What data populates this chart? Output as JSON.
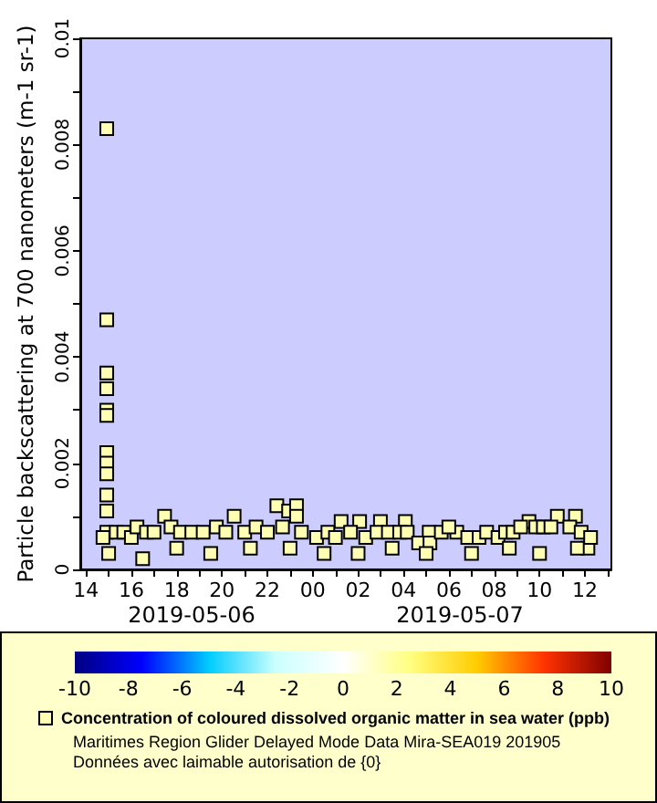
{
  "chart_data": {
    "type": "scatter",
    "ylabel": "Particle backscattering at 700 nanometers (m-1 sr-1)",
    "x": [
      "2019-05-06T14:55",
      "2019-05-06T14:55",
      "2019-05-06T14:55",
      "2019-05-06T14:55",
      "2019-05-06T14:55",
      "2019-05-06T14:55",
      "2019-05-06T14:55",
      "2019-05-06T14:55",
      "2019-05-06T14:55",
      "2019-05-06T14:55",
      "2019-05-06T14:55",
      "2019-05-06T14:55",
      "2019-05-06T17:28",
      "2019-05-06T20:32",
      "2019-05-06T22:25",
      "2019-05-06T22:56",
      "2019-05-06T23:17",
      "2019-05-06T23:17",
      "2019-05-07T01:15",
      "2019-05-07T02:04",
      "2019-05-07T02:59",
      "2019-05-07T04:05",
      "2019-05-07T05:08",
      "2019-05-07T06:21",
      "2019-05-07T09:32",
      "2019-05-07T10:47",
      "2019-05-07T11:35",
      "2019-05-07T12:08",
      "2019-05-06T14:45",
      "2019-05-06T15:20",
      "2019-05-06T15:40",
      "2019-05-06T16:00",
      "2019-05-06T16:15",
      "2019-05-06T16:40",
      "2019-05-06T17:00",
      "2019-05-06T17:45",
      "2019-05-06T18:10",
      "2019-05-06T18:40",
      "2019-05-06T19:10",
      "2019-05-06T19:45",
      "2019-05-06T20:10",
      "2019-05-06T21:00",
      "2019-05-06T21:30",
      "2019-05-06T22:00",
      "2019-05-06T22:40",
      "2019-05-06T23:30",
      "2019-05-07T00:10",
      "2019-05-07T00:40",
      "2019-05-07T01:00",
      "2019-05-07T01:40",
      "2019-05-07T02:20",
      "2019-05-07T02:50",
      "2019-05-07T03:20",
      "2019-05-07T03:50",
      "2019-05-07T04:10",
      "2019-05-07T04:40",
      "2019-05-07T05:10",
      "2019-05-07T05:40",
      "2019-05-07T06:00",
      "2019-05-07T06:50",
      "2019-05-07T07:20",
      "2019-05-07T07:40",
      "2019-05-07T08:10",
      "2019-05-07T08:30",
      "2019-05-07T08:50",
      "2019-05-07T09:10",
      "2019-05-07T09:50",
      "2019-05-07T10:10",
      "2019-05-07T10:30",
      "2019-05-07T11:20",
      "2019-05-07T11:50",
      "2019-05-07T12:15",
      "2019-05-06T15:00",
      "2019-05-06T16:30",
      "2019-05-06T18:00",
      "2019-05-06T19:30",
      "2019-05-06T21:15",
      "2019-05-06T23:00",
      "2019-05-07T00:30",
      "2019-05-07T02:00",
      "2019-05-07T03:30",
      "2019-05-07T05:00",
      "2019-05-07T07:00",
      "2019-05-07T08:40",
      "2019-05-07T10:00",
      "2019-05-07T11:40"
    ],
    "series": [
      {
        "name": "Concentration of coloured dissolved organic matter in sea water (ppb)",
        "color": "#ffffb3",
        "values": [
          0.0083,
          0.0047,
          0.0037,
          0.0034,
          0.003,
          0.0029,
          0.0022,
          0.002,
          0.0018,
          0.0014,
          0.0011,
          0.0007,
          0.001,
          0.001,
          0.0012,
          0.0011,
          0.0012,
          0.001,
          0.0009,
          0.0009,
          0.0009,
          0.0009,
          0.0007,
          0.0007,
          0.0009,
          0.001,
          0.001,
          0.0004,
          0.0006,
          0.0007,
          0.0007,
          0.0006,
          0.0008,
          0.0007,
          0.0007,
          0.0008,
          0.0007,
          0.0007,
          0.0007,
          0.0008,
          0.0007,
          0.0007,
          0.0008,
          0.0007,
          0.0008,
          0.0007,
          0.0006,
          0.0007,
          0.0006,
          0.0007,
          0.0006,
          0.0007,
          0.0007,
          0.0007,
          0.0007,
          0.0005,
          0.0005,
          0.0007,
          0.0008,
          0.0006,
          0.0006,
          0.0007,
          0.0006,
          0.0007,
          0.0007,
          0.0008,
          0.0008,
          0.0008,
          0.0008,
          0.0008,
          0.0007,
          0.0006,
          0.0003,
          0.0002,
          0.0004,
          0.0003,
          0.0004,
          0.0004,
          0.0003,
          0.0003,
          0.0004,
          0.0003,
          0.0003,
          0.0004,
          0.0003,
          0.0004
        ],
        "cvalues": [
          1.5,
          1.5,
          1.5,
          1.5,
          1.5,
          1.5,
          1.5,
          1.5,
          1.5,
          1.5,
          1.5,
          1.5,
          1.5,
          1.5,
          1.5,
          1.5,
          1.5,
          1.5,
          1.5,
          1.5,
          1.5,
          1.5,
          1.5,
          1.5,
          1.5,
          1.5,
          1.5,
          1.5,
          1.5,
          1.5,
          1.5,
          1.5,
          1.5,
          1.5,
          1.5,
          1.5,
          1.5,
          1.5,
          1.5,
          1.5,
          1.5,
          1.5,
          1.5,
          1.5,
          1.5,
          1.5,
          1.5,
          1.5,
          1.5,
          1.5,
          1.5,
          1.5,
          1.5,
          1.5,
          1.5,
          1.5,
          1.5,
          1.5,
          1.5,
          1.5,
          1.5,
          1.5,
          1.5,
          1.5,
          1.5,
          1.5,
          1.5,
          1.5,
          1.5,
          1.5,
          1.5,
          1.5,
          1.5,
          1.5,
          1.5,
          1.5,
          1.5,
          1.5,
          1.5,
          1.5,
          1.5,
          1.5,
          1.5,
          1.5,
          1.5,
          1.5
        ]
      }
    ],
    "marker": "square",
    "legend": "bottom",
    "clim": [
      -10,
      10
    ],
    "cticks": [
      -10,
      -8,
      -6,
      -4,
      -2,
      0,
      2,
      4,
      6,
      8,
      10
    ],
    "xlim": [
      "2019-05-06T13:45",
      "2019-05-07T13:10"
    ],
    "xticks": [
      {
        "value": "2019-05-06T14:00",
        "label": "14"
      },
      {
        "value": "2019-05-06T15:00",
        "label": null
      },
      {
        "value": "2019-05-06T16:00",
        "label": "16"
      },
      {
        "value": "2019-05-06T17:00",
        "label": null
      },
      {
        "value": "2019-05-06T18:00",
        "label": "18"
      },
      {
        "value": "2019-05-06T19:00",
        "label": null
      },
      {
        "value": "2019-05-06T20:00",
        "label": "20"
      },
      {
        "value": "2019-05-06T21:00",
        "label": null
      },
      {
        "value": "2019-05-06T22:00",
        "label": "22"
      },
      {
        "value": "2019-05-06T23:00",
        "label": null
      },
      {
        "value": "2019-05-07T00:00",
        "label": "00"
      },
      {
        "value": "2019-05-07T01:00",
        "label": null
      },
      {
        "value": "2019-05-07T02:00",
        "label": "02"
      },
      {
        "value": "2019-05-07T03:00",
        "label": null
      },
      {
        "value": "2019-05-07T04:00",
        "label": "04"
      },
      {
        "value": "2019-05-07T05:00",
        "label": null
      },
      {
        "value": "2019-05-07T06:00",
        "label": "06"
      },
      {
        "value": "2019-05-07T07:00",
        "label": null
      },
      {
        "value": "2019-05-07T08:00",
        "label": "08"
      },
      {
        "value": "2019-05-07T09:00",
        "label": null
      },
      {
        "value": "2019-05-07T10:00",
        "label": "10"
      },
      {
        "value": "2019-05-07T11:00",
        "label": null
      },
      {
        "value": "2019-05-07T12:00",
        "label": "12"
      },
      {
        "value": "2019-05-07T13:00",
        "label": null
      }
    ],
    "ylim": [
      0,
      0.01
    ],
    "yticks": [
      0,
      {
        "value": 0.001,
        "label": null
      },
      0.002,
      {
        "value": 0.003,
        "label": null
      },
      0.004,
      {
        "value": 0.005,
        "label": null
      },
      0.006,
      {
        "value": 0.007,
        "label": null
      },
      0.008,
      {
        "value": 0.009,
        "label": null
      },
      0.01
    ],
    "grid": false,
    "annotations": [
      "2019-05-06",
      "2019-05-07",
      "Maritimes Region Glider Delayed Mode Data Mira-SEA019 201905",
      "Données avec laimable autorisation de {0}"
    ]
  }
}
